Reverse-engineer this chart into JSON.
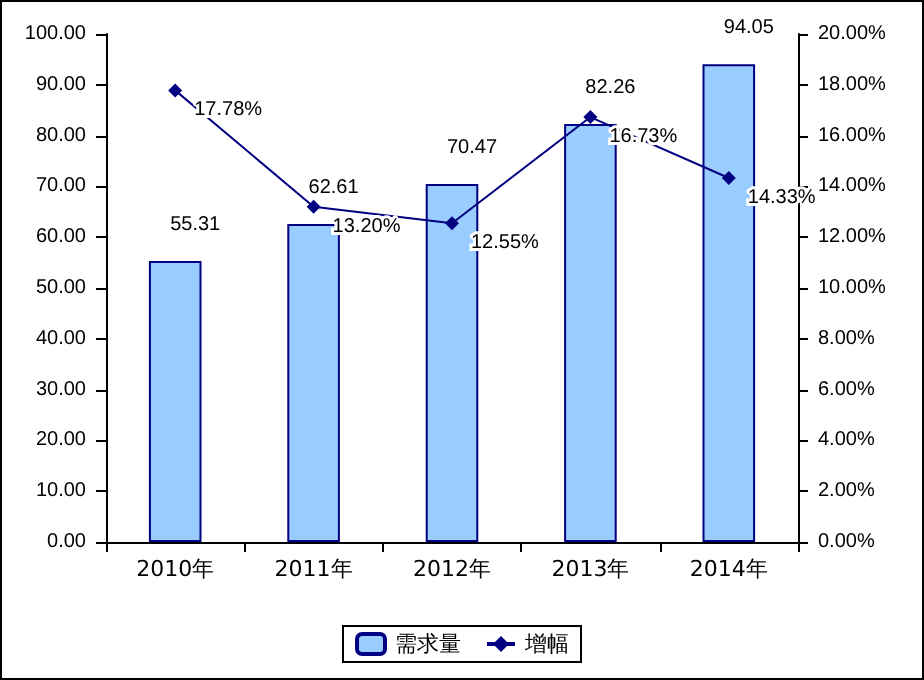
{
  "chart_data": {
    "type": "bar",
    "categories": [
      "2010年",
      "2011年",
      "2012年",
      "2013年",
      "2014年"
    ],
    "series": [
      {
        "name": "需求量",
        "type": "bar",
        "color": "#99ccff",
        "values": [
          55.31,
          62.61,
          70.47,
          82.26,
          94.05
        ],
        "value_labels": [
          "55.31",
          "62.61",
          "70.47",
          "82.26",
          "94.05"
        ]
      },
      {
        "name": "增幅",
        "type": "line",
        "axis": "y2",
        "color": "#000080",
        "values": [
          17.78,
          13.2,
          12.55,
          16.73,
          14.33
        ],
        "value_labels": [
          "17.78%",
          "13.20%",
          "12.55%",
          "16.73%",
          "14.33%"
        ]
      }
    ],
    "ylim": [
      0,
      100
    ],
    "yticks": [
      {
        "value": 0,
        "label": "0.00"
      },
      {
        "value": 10,
        "label": "10.00"
      },
      {
        "value": 20,
        "label": "20.00"
      },
      {
        "value": 30,
        "label": "30.00"
      },
      {
        "value": 40,
        "label": "40.00"
      },
      {
        "value": 50,
        "label": "50.00"
      },
      {
        "value": 60,
        "label": "60.00"
      },
      {
        "value": 70,
        "label": "70.00"
      },
      {
        "value": 80,
        "label": "80.00"
      },
      {
        "value": 90,
        "label": "90.00"
      },
      {
        "value": 100,
        "label": "100.00"
      }
    ],
    "y2lim": [
      0,
      20
    ],
    "y2ticks": [
      {
        "value": 0,
        "label": "0.00%"
      },
      {
        "value": 2,
        "label": "2.00%"
      },
      {
        "value": 4,
        "label": "4.00%"
      },
      {
        "value": 6,
        "label": "6.00%"
      },
      {
        "value": 8,
        "label": "8.00%"
      },
      {
        "value": 10,
        "label": "10.00%"
      },
      {
        "value": 12,
        "label": "12.00%"
      },
      {
        "value": 14,
        "label": "14.00%"
      },
      {
        "value": 16,
        "label": "16.00%"
      },
      {
        "value": 18,
        "label": "18.00%"
      },
      {
        "value": 20,
        "label": "20.00%"
      }
    ],
    "marker": "diamond",
    "legend": "bottom",
    "grid": false
  }
}
